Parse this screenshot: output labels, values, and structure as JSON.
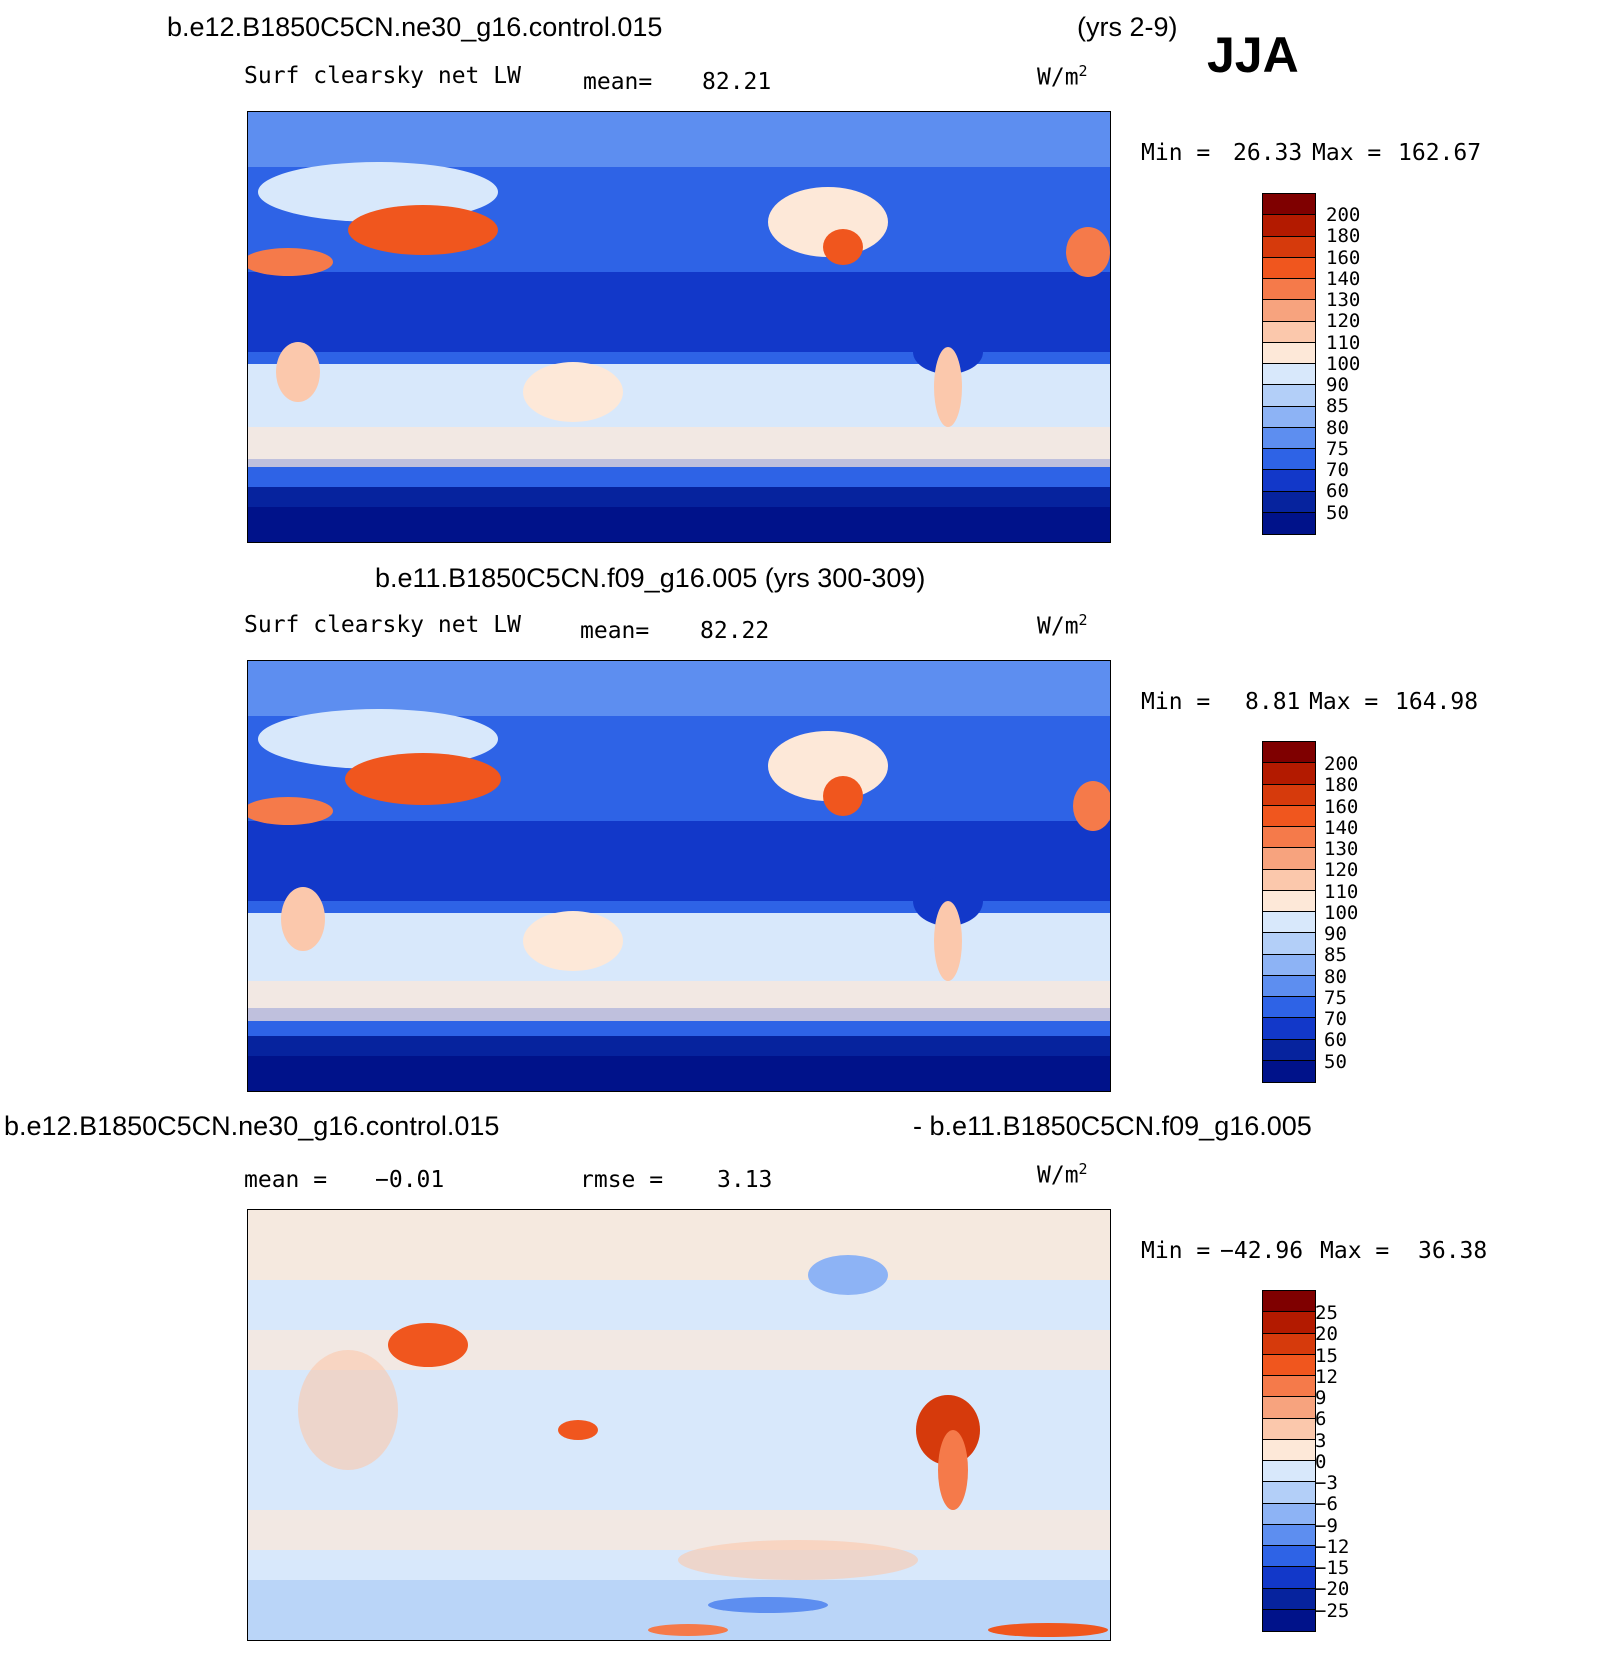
{
  "season": "JJA",
  "header": {
    "case1": "b.e12.B1850C5CN.ne30_g16.control.015",
    "case1_years": "(yrs 2-9)",
    "case2_title": "b.e11.B1850C5CN.f09_g16.005 (yrs 300-309)",
    "diff_left": "b.e12.B1850C5CN.ne30_g16.control.015",
    "diff_right": "- b.e11.B1850C5CN.f09_g16.005"
  },
  "units_base": "W/m",
  "units_exp": "2",
  "panels": [
    {
      "variable": "Surf  clearsky  net  LW",
      "stat_label": "mean=",
      "stat_value": "82.21",
      "min_label": "Min  =",
      "min_value": "26.33",
      "max_label": "Max  =",
      "max_value": "162.67",
      "colorbar_labels": [
        "200",
        "180",
        "160",
        "140",
        "130",
        "120",
        "110",
        "100",
        "90",
        "85",
        "80",
        "75",
        "70",
        "60",
        "50"
      ]
    },
    {
      "variable": "Surf  clearsky  net  LW",
      "stat_label": "mean=",
      "stat_value": "82.22",
      "min_label": "Min  =",
      "min_value": "8.81",
      "max_label": "Max  =",
      "max_value": "164.98",
      "colorbar_labels": [
        "200",
        "180",
        "160",
        "140",
        "130",
        "120",
        "110",
        "100",
        "90",
        "85",
        "80",
        "75",
        "70",
        "60",
        "50"
      ]
    },
    {
      "stat_label": "mean  =",
      "stat_value": "−0.01",
      "rmse_label": "rmse  =",
      "rmse_value": "3.13",
      "min_label": "Min  =",
      "min_value": "−42.96",
      "max_label": "Max  =",
      "max_value": "36.38",
      "colorbar_labels": [
        "25",
        "20",
        "15",
        "12",
        "9",
        "6",
        "3",
        "0",
        "−3",
        "−6",
        "−9",
        "−12",
        "−15",
        "−20",
        "−25"
      ]
    }
  ],
  "colors": {
    "colorbar": [
      "#7f0000",
      "#b31a00",
      "#d63a0c",
      "#f0561e",
      "#f57a4a",
      "#f7a37e",
      "#fbc8ac",
      "#fde8d8",
      "#d8e8fb",
      "#b3cff8",
      "#8db3f5",
      "#5d8ef0",
      "#2e63e6",
      "#1238c9",
      "#06239e",
      "#00128a"
    ]
  }
}
